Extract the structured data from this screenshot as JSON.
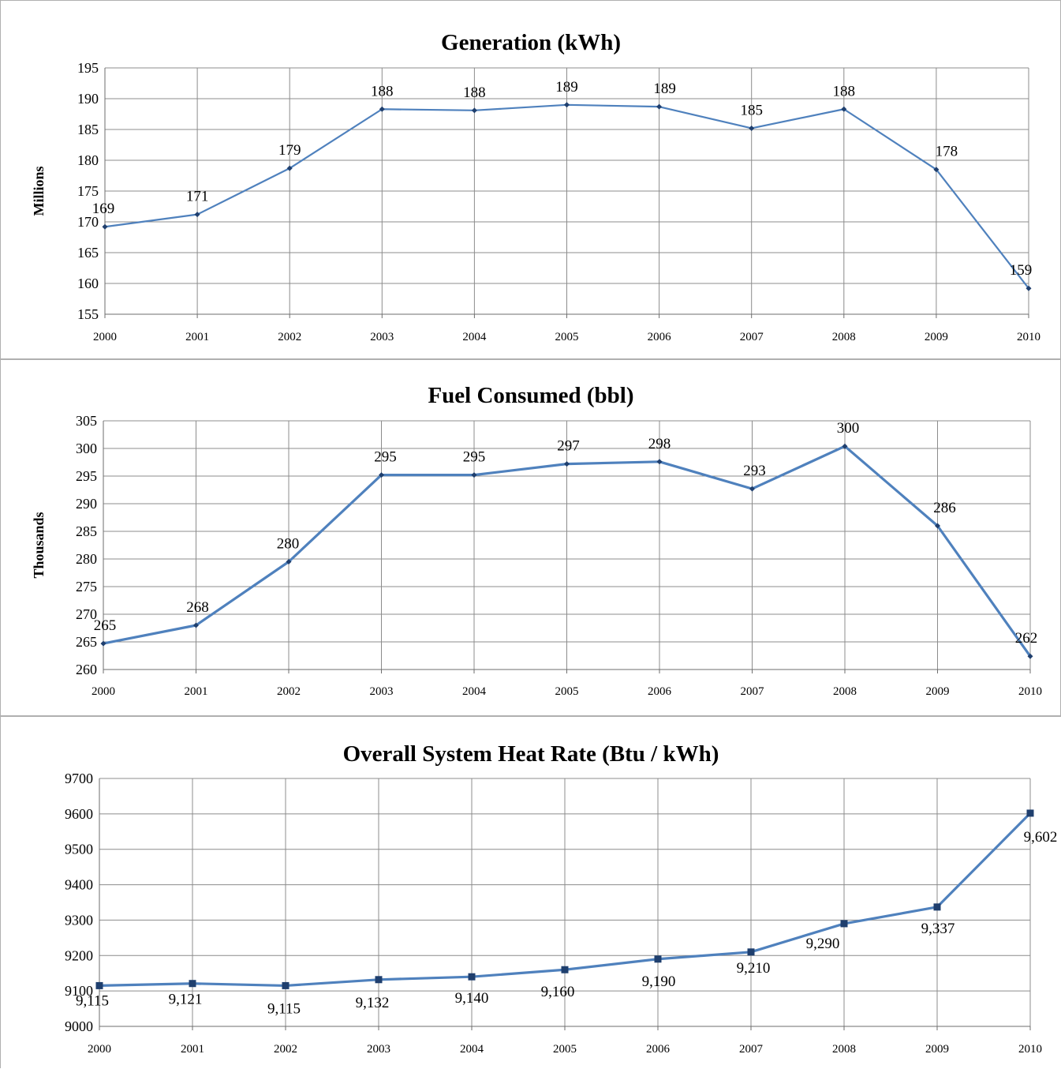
{
  "chart_data": [
    {
      "type": "line",
      "title": "Generation (kWh)",
      "ylabel": "Millions",
      "xlabel": "",
      "categories": [
        "2000",
        "2001",
        "2002",
        "2003",
        "2004",
        "2005",
        "2006",
        "2007",
        "2008",
        "2009",
        "2010"
      ],
      "values": [
        169.2,
        171.2,
        178.7,
        188.3,
        188.1,
        189.0,
        188.7,
        185.2,
        188.3,
        178.5,
        159.2
      ],
      "data_labels": [
        "169",
        "171",
        "179",
        "188",
        "188",
        "189",
        "189",
        "185",
        "188",
        "178",
        "159"
      ],
      "ylim": [
        155,
        195
      ],
      "yticks": [
        "155",
        "160",
        "165",
        "170",
        "175",
        "180",
        "185",
        "190",
        "195"
      ],
      "marker": "diamond",
      "color": "#4F81BD",
      "grid": true,
      "legend": "none"
    },
    {
      "type": "line",
      "title": "Fuel Consumed  (bbl)",
      "ylabel": "Thousands",
      "xlabel": "",
      "categories": [
        "2000",
        "2001",
        "2002",
        "2003",
        "2004",
        "2005",
        "2006",
        "2007",
        "2008",
        "2009",
        "2010"
      ],
      "values": [
        264.7,
        268.0,
        279.5,
        295.2,
        295.2,
        297.2,
        297.6,
        292.7,
        300.4,
        286.0,
        262.4
      ],
      "data_labels": [
        "265",
        "268",
        "280",
        "295",
        "295",
        "297",
        "298",
        "293",
        "300",
        "286",
        "262"
      ],
      "ylim": [
        260,
        305
      ],
      "yticks": [
        "260",
        "265",
        "270",
        "275",
        "280",
        "285",
        "290",
        "295",
        "300",
        "305"
      ],
      "marker": "diamond",
      "color": "#4F81BD",
      "grid": true,
      "legend": "none"
    },
    {
      "type": "line",
      "title": "Overall System Heat Rate (Btu / kWh)",
      "ylabel": "",
      "xlabel": "",
      "categories": [
        "2000",
        "2001",
        "2002",
        "2003",
        "2004",
        "2005",
        "2006",
        "2007",
        "2008",
        "2009",
        "2010"
      ],
      "values": [
        9115,
        9121,
        9115,
        9132,
        9140,
        9160,
        9190,
        9210,
        9290,
        9337,
        9602
      ],
      "data_labels": [
        "9,115",
        "9,121",
        "9,115",
        "9,132",
        "9,140",
        "9,160",
        "9,190",
        "9,210",
        "9,290",
        "9,337",
        "9,602"
      ],
      "ylim": [
        9000,
        9700
      ],
      "yticks": [
        "9000",
        "9100",
        "9200",
        "9300",
        "9400",
        "9500",
        "9600",
        "9700"
      ],
      "marker": "square",
      "color": "#4F81BD",
      "grid": true,
      "legend": "none"
    }
  ]
}
